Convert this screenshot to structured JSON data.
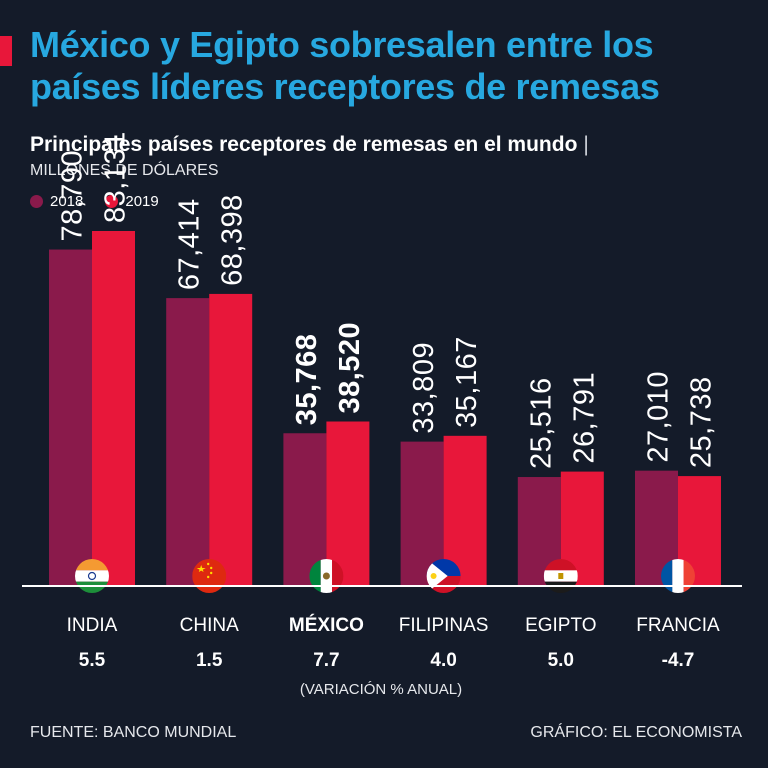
{
  "headline": "México y Egipto sobresalen entre los países líderes receptores de remesas",
  "subtitle": "Principales países receptores de remesas en el mundo",
  "subtitle_sep": "|",
  "units": "MILLONES DE DÓLARES",
  "legend": [
    {
      "label": "2018",
      "color": "#8a1a4b"
    },
    {
      "label": "2019",
      "color": "#e8173a"
    }
  ],
  "chart_data": {
    "type": "bar",
    "categories": [
      "INDIA",
      "CHINA",
      "MÉXICO",
      "FILIPINAS",
      "EGIPTO",
      "FRANCIA"
    ],
    "series": [
      {
        "name": "2018",
        "values": [
          78790,
          67414,
          35768,
          33809,
          25516,
          27010
        ],
        "labels": [
          "78,790",
          "67,414",
          "35,768",
          "33,809",
          "25,516",
          "27,010"
        ]
      },
      {
        "name": "2019",
        "values": [
          83131,
          68398,
          38520,
          35167,
          26791,
          25738
        ],
        "labels": [
          "83,131",
          "68,398",
          "38,520",
          "35,167",
          "26,791",
          "25,738"
        ]
      }
    ],
    "variation": [
      "5.5",
      "1.5",
      "7.7",
      "4.0",
      "5.0",
      "-4.7"
    ],
    "variation_label": "(VARIACIÓN % ANUAL)",
    "highlight_category": "MÉXICO",
    "ylim": [
      0,
      83131
    ],
    "grid": false,
    "legend_position": "top-left"
  },
  "flags": [
    "flag-india-icon",
    "flag-china-icon",
    "flag-mexico-icon",
    "flag-philippines-icon",
    "flag-egypt-icon",
    "flag-france-icon"
  ],
  "footer": {
    "source": "FUENTE: BANCO MUNDIAL",
    "credit": "GRÁFICO: EL ECONOMISTA"
  },
  "colors": {
    "background": "#141b29",
    "headline": "#27a8e0",
    "bar_2018": "#8a1a4b",
    "bar_2019": "#e8173a"
  }
}
